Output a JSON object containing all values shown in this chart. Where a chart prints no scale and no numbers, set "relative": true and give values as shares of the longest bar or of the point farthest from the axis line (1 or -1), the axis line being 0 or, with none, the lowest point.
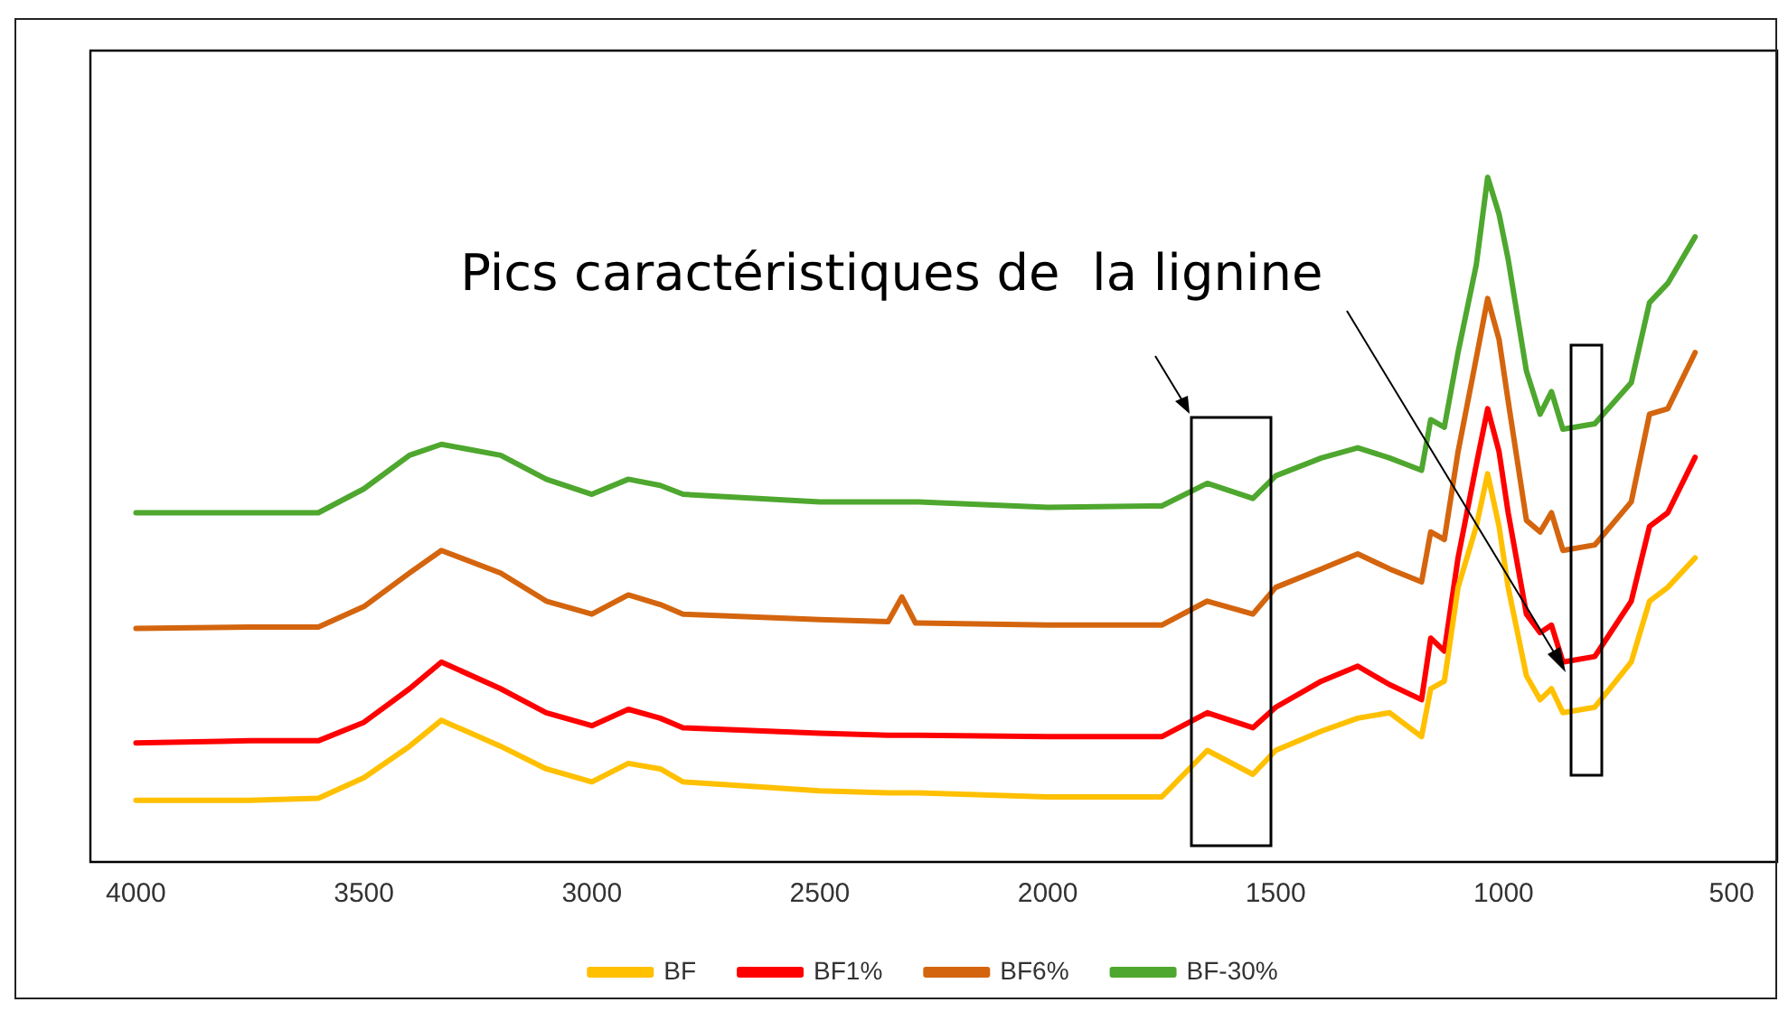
{
  "chart_data": {
    "type": "line",
    "relative": true,
    "x": [
      4000,
      3750,
      3600,
      3500,
      3400,
      3330,
      3200,
      3100,
      3000,
      2920,
      2850,
      2800,
      2500,
      2350,
      2320,
      2290,
      2000,
      1750,
      1650,
      1550,
      1500,
      1400,
      1320,
      1250,
      1180,
      1160,
      1130,
      1100,
      1060,
      1035,
      1010,
      990,
      950,
      920,
      895,
      870,
      800,
      720,
      680,
      640,
      580
    ],
    "xlim": [
      4100,
      400
    ],
    "xticks": [
      4000,
      3500,
      3000,
      2500,
      2000,
      1500,
      1000,
      500
    ],
    "grid": false,
    "legend": "bottom",
    "marker": "none",
    "line_style": "solid",
    "annotations": [
      "Pics caractéristiques de  la lignine"
    ],
    "series": [
      {
        "name": "BF",
        "color": "#ffc000",
        "values": [
          0.09,
          0.09,
          0.093,
          0.123,
          0.169,
          0.207,
          0.169,
          0.136,
          0.117,
          0.144,
          0.136,
          0.117,
          0.104,
          0.101,
          0.101,
          0.101,
          0.095,
          0.095,
          0.163,
          0.128,
          0.163,
          0.191,
          0.21,
          0.218,
          0.183,
          0.253,
          0.264,
          0.401,
          0.49,
          0.567,
          0.49,
          0.401,
          0.272,
          0.237,
          0.253,
          0.218,
          0.226,
          0.292,
          0.381,
          0.401,
          0.444
        ]
      },
      {
        "name": "BF1%",
        "color": "#ff0000",
        "values": [
          0.174,
          0.177,
          0.177,
          0.204,
          0.253,
          0.292,
          0.253,
          0.218,
          0.199,
          0.223,
          0.21,
          0.196,
          0.188,
          0.185,
          0.185,
          0.185,
          0.183,
          0.183,
          0.218,
          0.196,
          0.226,
          0.264,
          0.286,
          0.259,
          0.237,
          0.327,
          0.308,
          0.444,
          0.58,
          0.662,
          0.599,
          0.51,
          0.362,
          0.335,
          0.346,
          0.292,
          0.3,
          0.381,
          0.49,
          0.51,
          0.591
        ]
      },
      {
        "name": "BF6%",
        "color": "#d4650e",
        "values": [
          0.341,
          0.343,
          0.343,
          0.373,
          0.422,
          0.455,
          0.422,
          0.381,
          0.362,
          0.39,
          0.376,
          0.362,
          0.354,
          0.351,
          0.387,
          0.349,
          0.346,
          0.346,
          0.381,
          0.362,
          0.401,
          0.428,
          0.45,
          0.428,
          0.409,
          0.482,
          0.471,
          0.599,
          0.736,
          0.823,
          0.763,
          0.673,
          0.499,
          0.482,
          0.51,
          0.455,
          0.463,
          0.526,
          0.654,
          0.662,
          0.744
        ]
      },
      {
        "name": "BF-30%",
        "color": "#4ea72e",
        "values": [
          0.51,
          0.51,
          0.51,
          0.545,
          0.594,
          0.61,
          0.594,
          0.559,
          0.537,
          0.559,
          0.55,
          0.537,
          0.526,
          0.526,
          0.526,
          0.526,
          0.518,
          0.52,
          0.553,
          0.531,
          0.564,
          0.59,
          0.605,
          0.59,
          0.572,
          0.646,
          0.635,
          0.744,
          0.872,
          1.0,
          0.946,
          0.88,
          0.717,
          0.654,
          0.687,
          0.632,
          0.64,
          0.7,
          0.817,
          0.845,
          0.913
        ]
      }
    ]
  }
}
